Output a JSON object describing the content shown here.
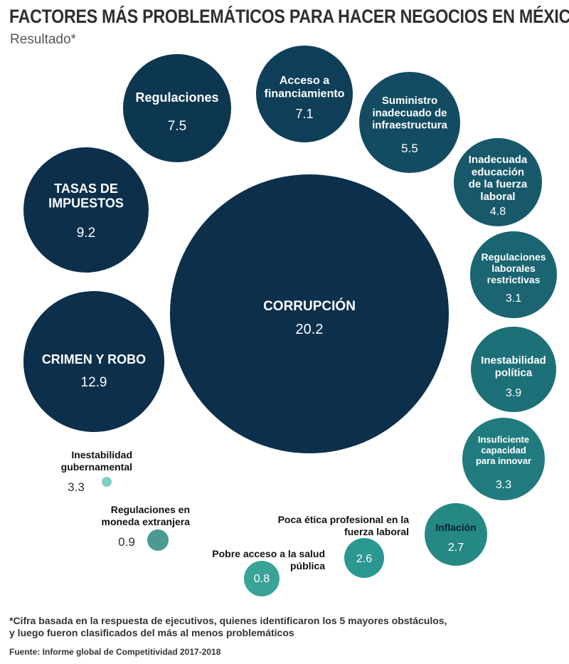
{
  "header": {
    "title": "FACTORES MÁS PROBLEMÁTICOS PARA HACER NEGOCIOS EN MÉXICO",
    "subtitle": "Resultado*"
  },
  "footer": {
    "note_line1": "*Cifra basada en la respuesta de ejecutivos, quienes identificaron los 5 mayores obstáculos,",
    "note_line2": "y luego fueron clasificados del más al menos problemáticos",
    "source": "Fuente: Informe global de Competitividad 2017-2018"
  },
  "chart_data": {
    "type": "bubble",
    "title": "FACTORES MÁS PROBLEMÁTICOS PARA HACER NEGOCIOS EN MÉXICO",
    "subtitle": "Resultado*",
    "series": [
      {
        "category": "CORRUPCIÓN",
        "value": 20.2,
        "color": "#0c2f4b"
      },
      {
        "category": "CRIMEN Y ROBO",
        "value": 12.9,
        "color": "#0c2f4b"
      },
      {
        "category": "TASAS DE IMPUESTOS",
        "value": 9.2,
        "color": "#0c2f4b"
      },
      {
        "category": "Regulaciones",
        "value": 7.5,
        "color": "#0d3650"
      },
      {
        "category": "Acceso a financiamiento",
        "value": 7.1,
        "color": "#0f3f58"
      },
      {
        "category": "Suministro inadecuado de infraestructura",
        "value": 5.5,
        "color": "#134c62"
      },
      {
        "category": "Inadecuada educación de la fuerza laboral",
        "value": 4.8,
        "color": "#17596a"
      },
      {
        "category": "Regulaciones laborales restrictivas",
        "value": 3.1,
        "color": "#1a6571"
      },
      {
        "category": "Inestabilidad política",
        "value": 3.9,
        "color": "#1d7077"
      },
      {
        "category": "Insuficiente capacidad para innovar",
        "value": 3.3,
        "color": "#217b7e"
      },
      {
        "category": "Inflación",
        "value": 2.7,
        "color": "#268885"
      },
      {
        "category": "Poca ética profesional en la fuerza laboral",
        "value": 2.6,
        "color": "#2a9890"
      },
      {
        "category": "Pobre acceso a la salud pública",
        "value": 0.8,
        "color": "#3aa398"
      },
      {
        "category": "Regulaciones en moneda extranjera",
        "value": 0.9,
        "color": "#4a9a93"
      },
      {
        "category": "Inestabilidad gubernamental",
        "value": 3.3,
        "color": "#7fcfc4"
      }
    ]
  }
}
